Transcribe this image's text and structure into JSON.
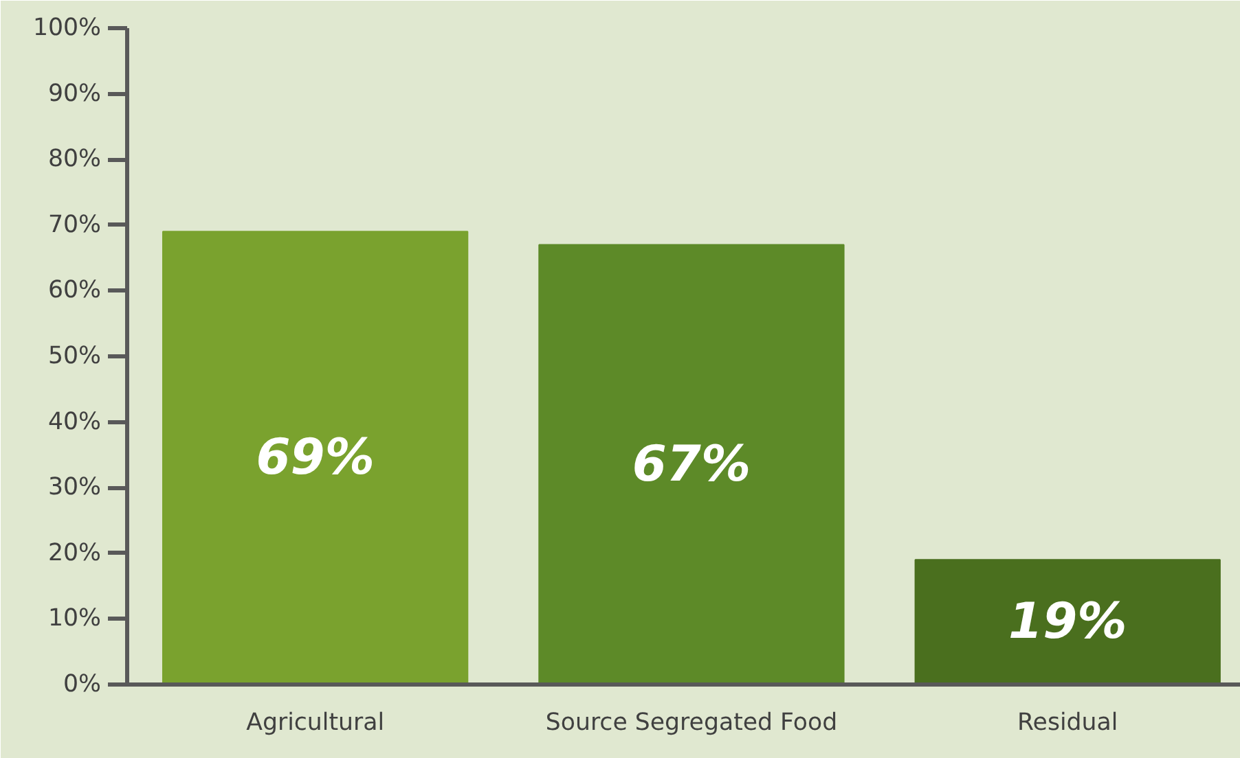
{
  "chart_data": {
    "type": "bar",
    "categories": [
      "Agricultural",
      "Source Segregated Food",
      "Residual"
    ],
    "values": [
      69,
      67,
      19
    ],
    "colors": [
      "#7aa22e",
      "#5d8a28",
      "#4a6f1e"
    ],
    "value_labels": [
      "69%",
      "67%",
      "19%"
    ],
    "ylim": [
      0,
      100
    ],
    "yticks": [
      {
        "value": 0,
        "label": "0%"
      },
      {
        "value": 10,
        "label": "10%"
      },
      {
        "value": 20,
        "label": "20%"
      },
      {
        "value": 30,
        "label": "30%"
      },
      {
        "value": 40,
        "label": "40%"
      },
      {
        "value": 50,
        "label": "50%"
      },
      {
        "value": 60,
        "label": "60%"
      },
      {
        "value": 70,
        "label": "70%"
      },
      {
        "value": 80,
        "label": "80%"
      },
      {
        "value": 90,
        "label": "90%"
      },
      {
        "value": 100,
        "label": "100%"
      }
    ],
    "grid": false
  }
}
